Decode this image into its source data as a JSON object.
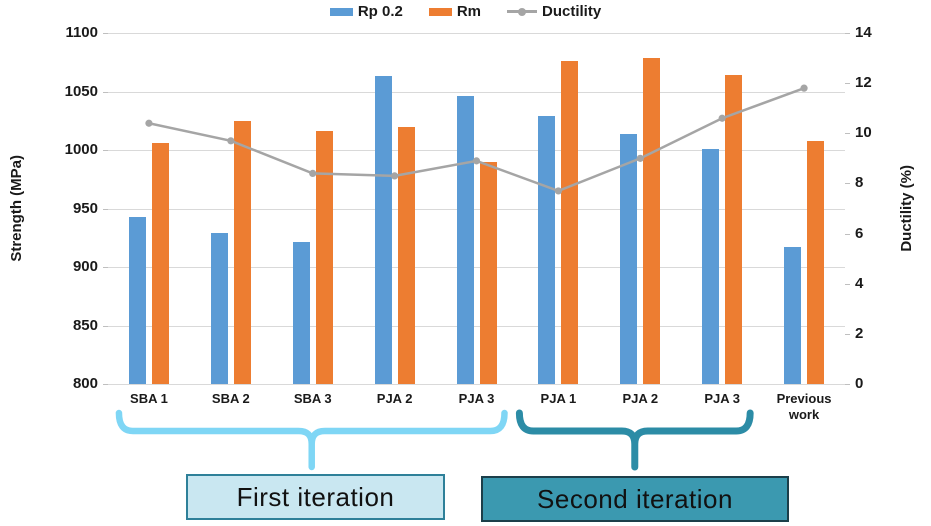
{
  "chart_data": {
    "type": "combo-bar-line",
    "categories": [
      "SBA 1",
      "SBA 2",
      "SBA 3",
      "PJA 2",
      "PJA 3",
      "PJA 1",
      "PJA 2",
      "PJA 3",
      "Previous work"
    ],
    "series": [
      {
        "name": "Rp 0.2",
        "type": "bar",
        "axis": "left",
        "color": "#5B9BD5",
        "values": [
          943,
          929,
          921,
          1063,
          1046,
          1029,
          1014,
          1001,
          917
        ]
      },
      {
        "name": "Rm",
        "type": "bar",
        "axis": "left",
        "color": "#ED7D31",
        "values": [
          1006,
          1025,
          1016,
          1020,
          990,
          1076,
          1079,
          1064,
          1008
        ]
      },
      {
        "name": "Ductility",
        "type": "line",
        "axis": "right",
        "color": "#A5A5A5",
        "values": [
          10.4,
          9.7,
          8.4,
          8.3,
          8.9,
          7.7,
          9.0,
          10.6,
          11.8
        ]
      }
    ],
    "left_axis": {
      "label": "Strength (MPa)",
      "min": 800,
      "max": 1100,
      "step": 50,
      "ticks": [
        800,
        850,
        900,
        950,
        1000,
        1050,
        1100
      ]
    },
    "right_axis": {
      "label": "Ductility (%)",
      "min": 0,
      "max": 14,
      "step": 2,
      "ticks": [
        0,
        2,
        4,
        6,
        8,
        10,
        12,
        14
      ]
    },
    "grid": "horizontal",
    "legend_position": "top"
  },
  "annotations": {
    "groups": [
      {
        "label": "First iteration",
        "span": [
          0,
          4
        ],
        "brace_color": "#7FD6F5",
        "box_fill": "#C9E7F1",
        "box_border": "#2E8099"
      },
      {
        "label": "Second iteration",
        "span": [
          5,
          7
        ],
        "brace_color": "#2C8CA6",
        "box_fill": "#3B99B0",
        "box_border": "#1C3F4A"
      }
    ]
  },
  "colors": {
    "gridline": "#D9D9D9",
    "axis_tick": "#BFBFBF",
    "text": "#1A1A1A",
    "background": "#FFFFFF"
  }
}
